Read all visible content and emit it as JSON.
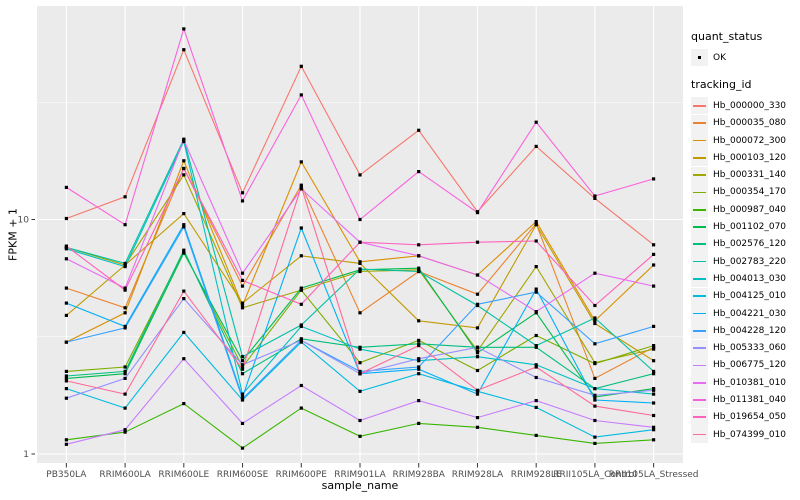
{
  "figure": {
    "background": "#FFFFFF",
    "panel_background": "#EBEBEB",
    "grid_color": "#FFFFFF",
    "axis_text_color": "#4D4D4D",
    "tick_mark_color": "#333333",
    "point_color": "#000000"
  },
  "axes": {
    "x": {
      "title": "sample_name"
    },
    "y": {
      "title": "FPKM + 1",
      "scale": "log10",
      "ticks": [
        {
          "label": "10",
          "value": 10
        },
        {
          "label": "1",
          "value": 1
        }
      ],
      "minor_gridlines": [
        3.1623,
        31.6228
      ]
    }
  },
  "legend": {
    "quant": {
      "title": "quant_status",
      "items": [
        {
          "label": "OK",
          "marker": "black-square-point"
        }
      ]
    },
    "tracking": {
      "title": "tracking_id"
    }
  },
  "chart_data": {
    "type": "line",
    "title": "",
    "xlabel": "sample_name",
    "ylabel": "FPKM + 1",
    "y_scale": "log10",
    "ylim": [
      0.92,
      80
    ],
    "grid": "on",
    "legend_position": "right",
    "point_shape": "filled-black-square",
    "x_categories": [
      "PB350LA",
      "RRIM600LA",
      "RRIM600LE",
      "RRIM600SE",
      "RRIM600PE",
      "RRIM901LA",
      "RRIM928BA",
      "RRIM928LA",
      "RRIM928LE",
      "RRII105LA_Control",
      "RRII105LA_Stressed"
    ],
    "series": [
      {
        "name": "Hb_000000_330",
        "color": "#F8766D",
        "values": [
          10.1,
          12.5,
          53,
          13,
          45,
          15.5,
          24,
          10.8,
          20.5,
          12.3,
          7.8
        ]
      },
      {
        "name": "Hb_000035_080",
        "color": "#EA8331",
        "values": [
          5.1,
          4.2,
          16.5,
          5.2,
          14.0,
          4.0,
          6.0,
          4.8,
          9.6,
          2.1,
          2.85
        ]
      },
      {
        "name": "Hb_000072_300",
        "color": "#D89000",
        "values": [
          3.0,
          4.0,
          17.8,
          4.3,
          17.6,
          6.6,
          7.0,
          5.8,
          9.8,
          3.7,
          6.4
        ]
      },
      {
        "name": "Hb_000103_120",
        "color": "#C09B00",
        "values": [
          3.9,
          6.4,
          10.6,
          4.4,
          7.0,
          6.5,
          3.7,
          3.45,
          9.5,
          3.6,
          2.5
        ]
      },
      {
        "name": "Hb_000331_140",
        "color": "#A3A500",
        "values": [
          7.6,
          6.4,
          15.5,
          4.2,
          5.0,
          6.0,
          6.1,
          2.75,
          6.3,
          2.45,
          2.8
        ]
      },
      {
        "name": "Hb_000354_170",
        "color": "#7CAE00",
        "values": [
          2.25,
          2.35,
          7.3,
          2.35,
          5.0,
          2.45,
          3.05,
          2.27,
          3.2,
          2.43,
          2.9
        ]
      },
      {
        "name": "Hb_000987_040",
        "color": "#39B600",
        "values": [
          1.15,
          1.24,
          1.64,
          1.06,
          1.57,
          1.19,
          1.35,
          1.3,
          1.2,
          1.11,
          1.15
        ]
      },
      {
        "name": "Hb_001102_070",
        "color": "#00BB4E",
        "values": [
          2.1,
          2.2,
          7.2,
          2.5,
          5.1,
          6.1,
          6.2,
          2.7,
          4.0,
          1.75,
          1.9
        ]
      },
      {
        "name": "Hb_002576_120",
        "color": "#00BF7D",
        "values": [
          2.15,
          2.25,
          7.4,
          2.2,
          3.1,
          2.85,
          2.95,
          2.85,
          2.85,
          1.9,
          2.2
        ]
      },
      {
        "name": "Hb_002783_220",
        "color": "#00C1A3",
        "values": [
          7.6,
          6.5,
          22.0,
          2.6,
          3.55,
          6.15,
          6.0,
          4.3,
          2.9,
          3.8,
          2.25
        ]
      },
      {
        "name": "Hb_004013_030",
        "color": "#00BFC4",
        "values": [
          7.5,
          6.3,
          21.5,
          1.8,
          3.5,
          2.8,
          2.5,
          2.6,
          2.4,
          1.9,
          1.8
        ]
      },
      {
        "name": "Hb_004125_010",
        "color": "#00BAE0",
        "values": [
          1.9,
          1.57,
          3.3,
          1.7,
          3.0,
          1.85,
          2.2,
          1.85,
          1.58,
          1.18,
          1.27
        ]
      },
      {
        "name": "Hb_004221_030",
        "color": "#00B0F6",
        "values": [
          4.4,
          3.5,
          9.5,
          1.75,
          9.2,
          2.2,
          2.3,
          1.8,
          5.05,
          1.7,
          1.65
        ]
      },
      {
        "name": "Hb_004228_120",
        "color": "#35A2FF",
        "values": [
          3.0,
          3.45,
          9.3,
          1.72,
          3.05,
          2.25,
          2.35,
          4.35,
          4.9,
          2.95,
          3.5
        ]
      },
      {
        "name": "Hb_005333_060",
        "color": "#9590FF",
        "values": [
          1.73,
          2.1,
          4.6,
          2.4,
          3.05,
          2.2,
          2.55,
          2.85,
          2.12,
          1.78,
          1.87
        ]
      },
      {
        "name": "Hb_006775_120",
        "color": "#C77CFF",
        "values": [
          1.1,
          1.27,
          2.55,
          1.35,
          1.96,
          1.39,
          1.69,
          1.43,
          1.69,
          1.39,
          1.3
        ]
      },
      {
        "name": "Hb_010381_010",
        "color": "#E76BF3",
        "values": [
          6.8,
          5.1,
          21.8,
          5.9,
          13.5,
          8.0,
          7.0,
          5.8,
          4.05,
          5.9,
          5.2
        ]
      },
      {
        "name": "Hb_011381_040",
        "color": "#FA62DB",
        "values": [
          13.7,
          9.5,
          65,
          12,
          34,
          10,
          16,
          10.7,
          26,
          12.6,
          14.9
        ]
      },
      {
        "name": "Hb_019654_050",
        "color": "#FF62BC",
        "values": [
          7.7,
          5.0,
          16.5,
          5.5,
          4.35,
          8.0,
          7.8,
          8.0,
          8.1,
          4.3,
          7.1
        ]
      },
      {
        "name": "Hb_074399_010",
        "color": "#FF6A98",
        "values": [
          2.05,
          1.8,
          4.95,
          2.3,
          13.8,
          2.2,
          2.9,
          1.87,
          2.35,
          1.6,
          1.46
        ]
      }
    ]
  }
}
